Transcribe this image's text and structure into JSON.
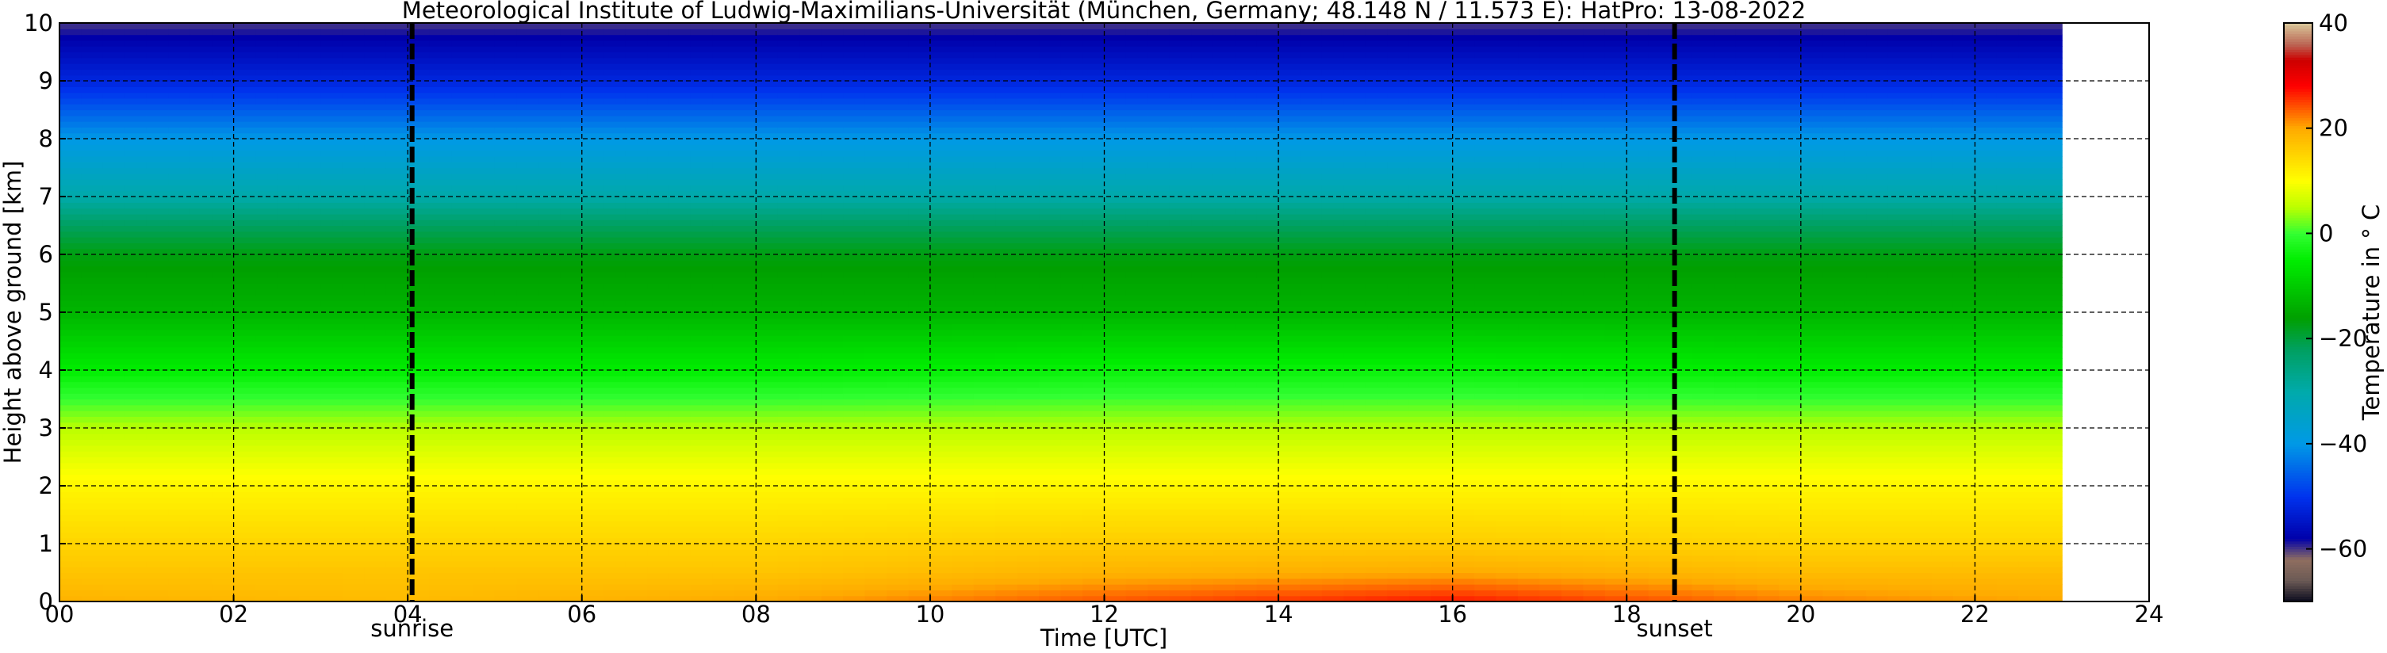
{
  "chart_data": {
    "type": "heatmap",
    "title": "Meteorological Institute of Ludwig-Maximilians-Universität (München, Germany; 48.148 N / 11.573 E):    HatPro: 13-08-2022",
    "xlabel": "Time [UTC]",
    "ylabel": "Height above ground [km]",
    "xlim": [
      0,
      24
    ],
    "ylim": [
      0,
      10
    ],
    "data_x_end": 23,
    "x_ticks": [
      "00",
      "02",
      "04",
      "06",
      "08",
      "10",
      "12",
      "14",
      "16",
      "18",
      "20",
      "22",
      "24"
    ],
    "y_ticks": [
      "0",
      "1",
      "2",
      "3",
      "4",
      "5",
      "6",
      "7",
      "8",
      "9",
      "10"
    ],
    "grid": true,
    "colorbar": {
      "label": "Temperature in $^\\circ$C",
      "range": [
        -70,
        40
      ],
      "ticks": [
        "-60",
        "-40",
        "-20",
        "0",
        "20",
        "40"
      ],
      "stops": [
        {
          "v": -70,
          "c": "#0a0a1e"
        },
        {
          "v": -66,
          "c": "#6b5a55"
        },
        {
          "v": -62,
          "c": "#8f6e60"
        },
        {
          "v": -58,
          "c": "#0000aa"
        },
        {
          "v": -50,
          "c": "#0033ee"
        },
        {
          "v": -40,
          "c": "#0099e6"
        },
        {
          "v": -30,
          "c": "#00aaaa"
        },
        {
          "v": -22,
          "c": "#00a060"
        },
        {
          "v": -16,
          "c": "#00a000"
        },
        {
          "v": -5,
          "c": "#00ee00"
        },
        {
          "v": 0,
          "c": "#33ff33"
        },
        {
          "v": 5,
          "c": "#bbff00"
        },
        {
          "v": 10,
          "c": "#ffff00"
        },
        {
          "v": 20,
          "c": "#ffaa00"
        },
        {
          "v": 28,
          "c": "#ff0000"
        },
        {
          "v": 33,
          "c": "#cc0000"
        },
        {
          "v": 36,
          "c": "#bb6655"
        },
        {
          "v": 40,
          "c": "#d9c89a"
        }
      ]
    },
    "temperature_profiles": [
      {
        "time": 0,
        "heights_km": [
          0,
          0.5,
          1,
          2,
          3,
          4,
          5,
          6,
          6.5,
          7,
          8,
          9,
          10
        ],
        "temps_c": [
          19,
          17,
          15,
          11,
          5,
          -5,
          -13,
          -17,
          -22,
          -30,
          -40,
          -52,
          -60
        ]
      },
      {
        "time": 4,
        "heights_km": [
          0,
          0.5,
          1,
          2,
          3,
          4,
          5,
          6,
          6.5,
          7,
          8,
          9,
          10
        ],
        "temps_c": [
          18,
          17,
          15,
          11,
          5,
          -5,
          -13,
          -17,
          -22,
          -30,
          -40,
          -52,
          -60
        ]
      },
      {
        "time": 8,
        "heights_km": [
          0,
          0.5,
          1,
          2,
          3,
          4,
          5,
          6,
          6.5,
          7,
          8,
          9,
          10
        ],
        "temps_c": [
          20,
          17,
          15,
          11,
          5,
          -5,
          -13,
          -17,
          -22,
          -30,
          -40,
          -52,
          -60
        ]
      },
      {
        "time": 12,
        "heights_km": [
          0,
          0.5,
          1,
          2,
          3,
          4,
          5,
          6,
          6.5,
          7,
          8,
          9,
          10
        ],
        "temps_c": [
          24,
          19,
          16,
          11,
          5,
          -4,
          -13,
          -17,
          -22,
          -30,
          -40,
          -52,
          -60
        ]
      },
      {
        "time": 16,
        "heights_km": [
          0,
          0.5,
          1,
          2,
          3,
          4,
          5,
          6,
          6.5,
          7,
          8,
          9,
          10
        ],
        "temps_c": [
          27,
          20,
          16,
          11,
          5,
          -4,
          -13,
          -17,
          -22,
          -30,
          -40,
          -52,
          -60
        ]
      },
      {
        "time": 20,
        "heights_km": [
          0,
          0.5,
          1,
          2,
          3,
          4,
          5,
          6,
          6.5,
          7,
          8,
          9,
          10
        ],
        "temps_c": [
          22,
          18,
          15,
          11,
          5,
          -5,
          -13,
          -17,
          -22,
          -30,
          -40,
          -52,
          -60
        ]
      },
      {
        "time": 23,
        "heights_km": [
          0,
          0.5,
          1,
          2,
          3,
          4,
          5,
          6,
          6.5,
          7,
          8,
          9,
          10
        ],
        "temps_c": [
          20,
          18,
          15,
          11,
          5,
          -5,
          -13,
          -17,
          -22,
          -30,
          -40,
          -52,
          -60
        ]
      }
    ],
    "annotations": [
      {
        "label": "sunrise",
        "x": 4.05
      },
      {
        "label": "sunset",
        "x": 18.55
      }
    ]
  }
}
